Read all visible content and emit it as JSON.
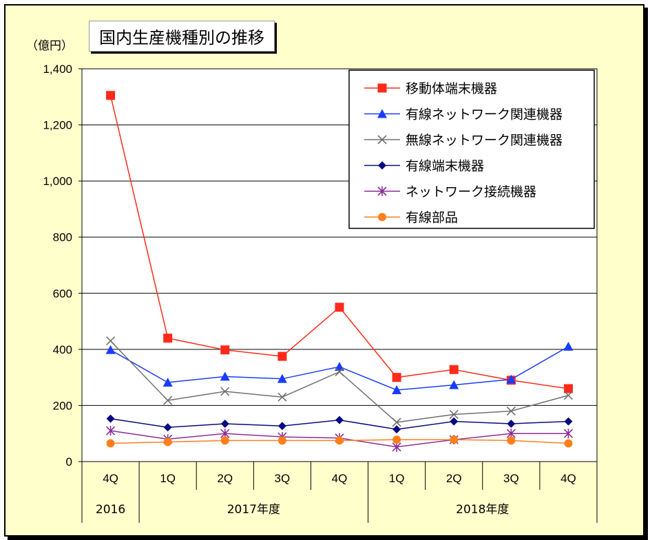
{
  "chart_data": {
    "type": "line",
    "title": "国内生産機種別の推移",
    "unit_label": "（億円）",
    "categories": [
      "4Q",
      "1Q",
      "2Q",
      "3Q",
      "4Q",
      "1Q",
      "2Q",
      "3Q",
      "4Q"
    ],
    "groups": [
      {
        "label": "2016",
        "count": 1
      },
      {
        "label": "2017年度",
        "count": 4
      },
      {
        "label": "2018年度",
        "count": 4
      }
    ],
    "ylim": [
      0,
      1400
    ],
    "yticks": [
      0,
      200,
      400,
      600,
      800,
      1000,
      1200,
      1400
    ],
    "ytick_labels": [
      "0",
      "200",
      "400",
      "600",
      "800",
      "1,000",
      "1,200",
      "1,400"
    ],
    "grid": true,
    "legend_position": "top-right",
    "series": [
      {
        "name": "移動体端末機器",
        "color": "#ff2a1a",
        "marker": "square",
        "values": [
          1305,
          440,
          398,
          375,
          550,
          300,
          328,
          290,
          260
        ]
      },
      {
        "name": "有線ネットワーク関連機器",
        "color": "#1a3cff",
        "marker": "triangle",
        "values": [
          398,
          282,
          303,
          295,
          338,
          255,
          273,
          293,
          410
        ]
      },
      {
        "name": "無線ネットワーク関連機器",
        "color": "#707070",
        "marker": "x",
        "values": [
          430,
          218,
          250,
          230,
          320,
          140,
          168,
          180,
          236
        ]
      },
      {
        "name": "有線端末機器",
        "color": "#0a0a80",
        "marker": "diamond",
        "values": [
          153,
          122,
          135,
          127,
          148,
          115,
          143,
          135,
          143
        ]
      },
      {
        "name": "ネットワーク接続機器",
        "color": "#8b2a9a",
        "marker": "star",
        "values": [
          110,
          80,
          100,
          88,
          84,
          52,
          78,
          100,
          100
        ]
      },
      {
        "name": "有線部品",
        "color": "#ff7f1a",
        "marker": "circle",
        "values": [
          65,
          70,
          75,
          75,
          75,
          78,
          78,
          75,
          65
        ]
      }
    ]
  }
}
